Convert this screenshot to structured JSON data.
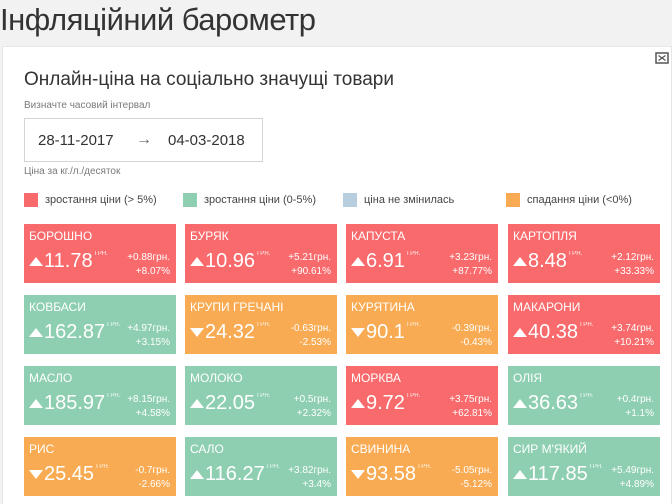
{
  "page": {
    "title": "Інфляційний барометр"
  },
  "card": {
    "title": "Онлайн-ціна на соціально значущі товари",
    "interval_label": "Визначте часовий інтервал",
    "date_from": "28-11-2017",
    "date_arrow": "→",
    "date_to": "04-03-2018",
    "unit_note": "Ціна за кг./л./десяток"
  },
  "colors": {
    "red": "#f96a6c",
    "green": "#8ecfb1",
    "blue": "#b6cedd",
    "orange": "#f8ab52"
  },
  "legend": [
    {
      "label": "зростання ціни (> 5%)",
      "color": "#f96a6c"
    },
    {
      "label": "зростання ціни (0-5%)",
      "color": "#8ecfb1"
    },
    {
      "label": "ціна не змінилась",
      "color": "#b6cedd"
    },
    {
      "label": "спадання ціни (<0%)",
      "color": "#f8ab52"
    }
  ],
  "tiles": [
    {
      "name": "БОРОШНО",
      "price": "11.78",
      "unit": "ГРН.",
      "abs": "+0.88грн.",
      "pct": "+8.07%",
      "trend": "up",
      "category": "red"
    },
    {
      "name": "БУРЯК",
      "price": "10.96",
      "unit": "ГРН.",
      "abs": "+5.21грн.",
      "pct": "+90.61%",
      "trend": "up",
      "category": "red"
    },
    {
      "name": "КАПУСТА",
      "price": "6.91",
      "unit": "ГРН.",
      "abs": "+3.23грн.",
      "pct": "+87.77%",
      "trend": "up",
      "category": "red"
    },
    {
      "name": "КАРТОПЛЯ",
      "price": "8.48",
      "unit": "ГРН.",
      "abs": "+2.12грн.",
      "pct": "+33.33%",
      "trend": "up",
      "category": "red"
    },
    {
      "name": "КОВБАСИ",
      "price": "162.87",
      "unit": "ГРН.",
      "abs": "+4.97грн.",
      "pct": "+3.15%",
      "trend": "up",
      "category": "green"
    },
    {
      "name": "КРУПИ ГРЕЧАНІ",
      "price": "24.32",
      "unit": "ГРН.",
      "abs": "-0.63грн.",
      "pct": "-2.53%",
      "trend": "down",
      "category": "orange"
    },
    {
      "name": "КУРЯТИНА",
      "price": "90.1",
      "unit": "ГРН.",
      "abs": "-0.39грн.",
      "pct": "-0.43%",
      "trend": "down",
      "category": "orange"
    },
    {
      "name": "МАКАРОНИ",
      "price": "40.38",
      "unit": "ГРН.",
      "abs": "+3.74грн.",
      "pct": "+10.21%",
      "trend": "up",
      "category": "red"
    },
    {
      "name": "МАСЛО",
      "price": "185.97",
      "unit": "ГРН.",
      "abs": "+8.15грн.",
      "pct": "+4.58%",
      "trend": "up",
      "category": "green"
    },
    {
      "name": "МОЛОКО",
      "price": "22.05",
      "unit": "ГРН.",
      "abs": "+0.5грн.",
      "pct": "+2.32%",
      "trend": "up",
      "category": "green"
    },
    {
      "name": "МОРКВА",
      "price": "9.72",
      "unit": "ГРН.",
      "abs": "+3.75грн.",
      "pct": "+62.81%",
      "trend": "up",
      "category": "red"
    },
    {
      "name": "ОЛІЯ",
      "price": "36.63",
      "unit": "ГРН.",
      "abs": "+0.4грн.",
      "pct": "+1.1%",
      "trend": "up",
      "category": "green"
    },
    {
      "name": "РИС",
      "price": "25.45",
      "unit": "ГРН.",
      "abs": "-0.7грн.",
      "pct": "-2.66%",
      "trend": "down",
      "category": "orange"
    },
    {
      "name": "САЛО",
      "price": "116.27",
      "unit": "ГРН.",
      "abs": "+3.82грн.",
      "pct": "+3.4%",
      "trend": "up",
      "category": "green"
    },
    {
      "name": "СВИНИНА",
      "price": "93.58",
      "unit": "ГРН.",
      "abs": "-5.05грн.",
      "pct": "-5.12%",
      "trend": "down",
      "category": "orange"
    },
    {
      "name": "СИР М'ЯКИЙ",
      "price": "117.85",
      "unit": "ГРН.",
      "abs": "+5.49грн.",
      "pct": "+4.89%",
      "trend": "up",
      "category": "green"
    }
  ]
}
